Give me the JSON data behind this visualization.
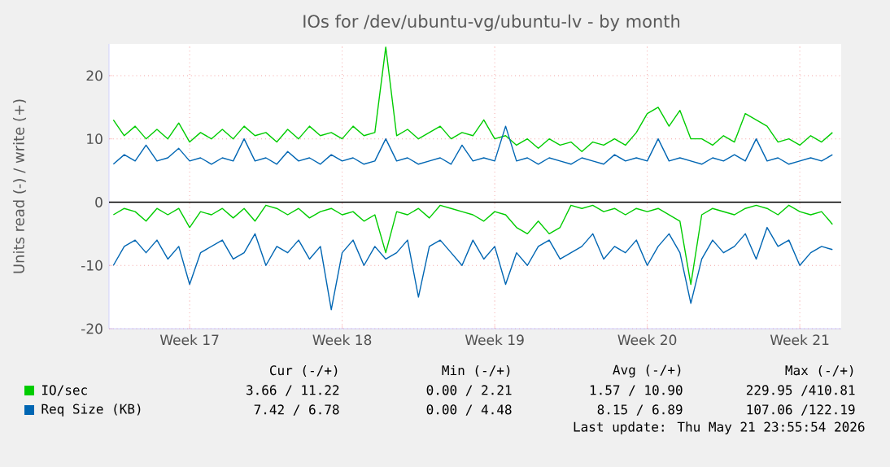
{
  "chart_data": {
    "type": "line",
    "title": "IOs for /dev/ubuntu-vg/ubuntu-lv - by month",
    "ylabel": "Units read (-) / write (+)",
    "categories": [
      null,
      null,
      null,
      null,
      null,
      null,
      null,
      "Week 17",
      null,
      null,
      null,
      null,
      null,
      null,
      null,
      null,
      null,
      null,
      null,
      null,
      null,
      "Week 18",
      null,
      null,
      null,
      null,
      null,
      null,
      null,
      null,
      null,
      null,
      null,
      null,
      null,
      "Week 19",
      null,
      null,
      null,
      null,
      null,
      null,
      null,
      null,
      null,
      null,
      null,
      null,
      null,
      "Week 20",
      null,
      null,
      null,
      null,
      null,
      null,
      null,
      null,
      null,
      null,
      null,
      null,
      null,
      "Week 21",
      null,
      null,
      null
    ],
    "ylim": [
      -20,
      25
    ],
    "yticks": [
      -20,
      -10,
      0,
      10,
      20
    ],
    "grid": true,
    "legend": "bottom",
    "ref_lines": [
      {
        "axis": "y",
        "value": 0,
        "color": "#000000"
      }
    ],
    "series": [
      {
        "name": "IO/sec",
        "color": "#00cc00",
        "values": [
          13,
          10.5,
          12,
          10,
          11.5,
          10,
          12.5,
          9.5,
          11,
          10,
          11.5,
          10,
          12,
          10.5,
          11,
          9.5,
          11.5,
          10,
          12,
          10.5,
          11,
          10,
          12,
          10.5,
          11,
          24.5,
          10.5,
          11.5,
          10,
          11,
          12,
          10,
          11,
          10.5,
          13,
          10,
          10.5,
          9,
          10,
          8.5,
          10,
          9,
          9.5,
          8,
          9.5,
          9,
          10,
          9,
          11,
          14,
          15,
          12,
          14.5,
          10,
          10,
          9,
          10.5,
          9.5,
          14,
          13,
          12,
          9.5,
          10,
          9,
          10.5,
          9.5,
          11
        ]
      },
      {
        "color": "#00cc00",
        "values": [
          -2,
          -1,
          -1.5,
          -3,
          -1,
          -2,
          -1,
          -4,
          -1.5,
          -2,
          -1,
          -2.5,
          -1,
          -3,
          -0.5,
          -1,
          -2,
          -1,
          -2.5,
          -1.5,
          -1,
          -2,
          -1.5,
          -3,
          -2,
          -8,
          -1.5,
          -2,
          -1,
          -2.5,
          -0.5,
          -1,
          -1.5,
          -2,
          -3,
          -1.5,
          -2,
          -4,
          -5,
          -3,
          -5,
          -4,
          -0.5,
          -1,
          -0.5,
          -1.5,
          -1,
          -2,
          -1,
          -1.5,
          -1,
          -2,
          -3,
          -13,
          -2,
          -1,
          -1.5,
          -2,
          -1,
          -0.5,
          -1,
          -2,
          -0.5,
          -1.5,
          -2,
          -1.5,
          -3.5
        ]
      },
      {
        "name": "Req Size (KB)",
        "color": "#0066b3",
        "values": [
          6,
          7.5,
          6.5,
          9,
          6.5,
          7,
          8.5,
          6.5,
          7,
          6,
          7,
          6.5,
          10,
          6.5,
          7,
          6,
          8,
          6.5,
          7,
          6,
          7.5,
          6.5,
          7,
          6,
          6.5,
          10,
          6.5,
          7,
          6,
          6.5,
          7,
          6,
          9,
          6.5,
          7,
          6.5,
          12,
          6.5,
          7,
          6,
          7,
          6.5,
          6,
          7,
          6.5,
          6,
          7.5,
          6.5,
          7,
          6.5,
          10,
          6.5,
          7,
          6.5,
          6,
          7,
          6.5,
          7.5,
          6.5,
          10,
          6.5,
          7,
          6,
          6.5,
          7,
          6.5,
          7.5
        ]
      },
      {
        "color": "#0066b3",
        "values": [
          -10,
          -7,
          -6,
          -8,
          -6,
          -9,
          -7,
          -13,
          -8,
          -7,
          -6,
          -9,
          -8,
          -5,
          -10,
          -7,
          -8,
          -6,
          -9,
          -7,
          -17,
          -8,
          -6,
          -10,
          -7,
          -9,
          -8,
          -6,
          -15,
          -7,
          -6,
          -8,
          -10,
          -6,
          -9,
          -7,
          -13,
          -8,
          -10,
          -7,
          -6,
          -9,
          -8,
          -7,
          -5,
          -9,
          -7,
          -8,
          -6,
          -10,
          -7,
          -5,
          -8,
          -16,
          -9,
          -6,
          -8,
          -7,
          -5,
          -9,
          -4,
          -7,
          -6,
          -10,
          -8,
          -7,
          -7.5
        ]
      }
    ],
    "annotations": [
      "Cur (-/+)",
      "Min (-/+)",
      "Avg (-/+)",
      "Max (-/+)",
      "3.66 / 11.22",
      "0.00 / 2.21",
      "1.57 / 10.90",
      "229.95 /410.81",
      "7.42 / 6.78",
      "0.00 / 4.48",
      "8.15 / 6.89",
      "107.06 /122.19",
      "Last update: Thu May 21 23:55:54 2026"
    ]
  }
}
